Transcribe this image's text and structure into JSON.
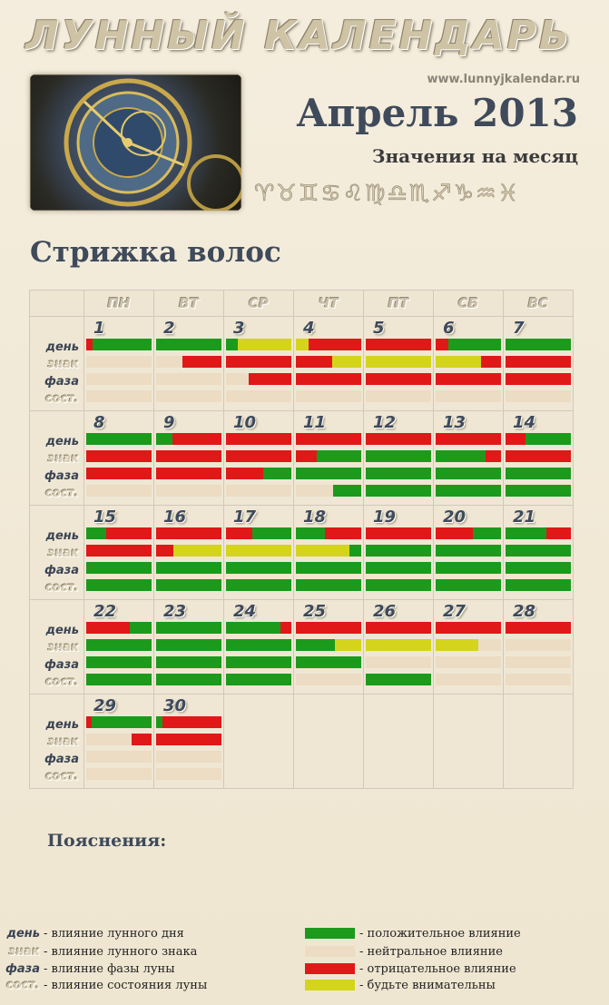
{
  "header": {
    "logo_text": "ЛУННЫЙ КАЛЕНДАРЬ",
    "site": "www.lunnyjkalendar.ru",
    "month": "Апрель 2013",
    "subtitle": "Значения на месяц",
    "zodiac_symbols": "♈♉♊♋♌♍♎♏♐♑♒♓"
  },
  "page_title": "Стрижка волос",
  "weekdays": [
    "ПН",
    "ВТ",
    "СР",
    "ЧТ",
    "ПТ",
    "СБ",
    "ВС"
  ],
  "row_labels": {
    "day": "день",
    "sign": "знак",
    "phase": "фаза",
    "state": "сост."
  },
  "colors": {
    "g": "#1c9a1c",
    "r": "#e01818",
    "y": "#d4d41c",
    "n": "#ecdcc4"
  },
  "weeks": [
    [
      {
        "num": "1",
        "bars": [
          [
            [
              "r",
              0.1
            ],
            [
              "g",
              0.9
            ]
          ],
          [
            [
              "n",
              1
            ]
          ],
          [
            [
              "n",
              1
            ]
          ],
          [
            [
              "n",
              1
            ]
          ]
        ]
      },
      {
        "num": "2",
        "bars": [
          [
            [
              "g",
              1
            ]
          ],
          [
            [
              "n",
              0.4
            ],
            [
              "r",
              0.6
            ]
          ],
          [
            [
              "n",
              1
            ]
          ],
          [
            [
              "n",
              1
            ]
          ]
        ]
      },
      {
        "num": "3",
        "bars": [
          [
            [
              "g",
              0.18
            ],
            [
              "y",
              0.82
            ]
          ],
          [
            [
              "r",
              1
            ]
          ],
          [
            [
              "n",
              0.35
            ],
            [
              "r",
              0.65
            ]
          ],
          [
            [
              "n",
              1
            ]
          ]
        ]
      },
      {
        "num": "4",
        "bars": [
          [
            [
              "y",
              0.2
            ],
            [
              "r",
              0.8
            ]
          ],
          [
            [
              "r",
              0.55
            ],
            [
              "y",
              0.45
            ]
          ],
          [
            [
              "r",
              1
            ]
          ],
          [
            [
              "n",
              1
            ]
          ]
        ]
      },
      {
        "num": "5",
        "bars": [
          [
            [
              "r",
              1
            ]
          ],
          [
            [
              "y",
              1
            ]
          ],
          [
            [
              "r",
              1
            ]
          ],
          [
            [
              "n",
              1
            ]
          ]
        ]
      },
      {
        "num": "6",
        "bars": [
          [
            [
              "r",
              0.2
            ],
            [
              "g",
              0.8
            ]
          ],
          [
            [
              "y",
              0.7
            ],
            [
              "r",
              0.3
            ]
          ],
          [
            [
              "r",
              1
            ]
          ],
          [
            [
              "n",
              1
            ]
          ]
        ]
      },
      {
        "num": "7",
        "bars": [
          [
            [
              "g",
              1
            ]
          ],
          [
            [
              "r",
              1
            ]
          ],
          [
            [
              "r",
              1
            ]
          ],
          [
            [
              "n",
              1
            ]
          ]
        ]
      }
    ],
    [
      {
        "num": "8",
        "bars": [
          [
            [
              "g",
              1
            ]
          ],
          [
            [
              "r",
              1
            ]
          ],
          [
            [
              "r",
              1
            ]
          ],
          [
            [
              "n",
              1
            ]
          ]
        ]
      },
      {
        "num": "9",
        "bars": [
          [
            [
              "g",
              0.25
            ],
            [
              "r",
              0.75
            ]
          ],
          [
            [
              "r",
              1
            ]
          ],
          [
            [
              "r",
              1
            ]
          ],
          [
            [
              "n",
              1
            ]
          ]
        ]
      },
      {
        "num": "10",
        "bars": [
          [
            [
              "r",
              1
            ]
          ],
          [
            [
              "r",
              1
            ]
          ],
          [
            [
              "r",
              0.57
            ],
            [
              "g",
              0.43
            ]
          ],
          [
            [
              "n",
              1
            ]
          ]
        ]
      },
      {
        "num": "11",
        "bars": [
          [
            [
              "r",
              1
            ]
          ],
          [
            [
              "r",
              0.32
            ],
            [
              "g",
              0.68
            ]
          ],
          [
            [
              "g",
              1
            ]
          ],
          [
            [
              "n",
              0.57
            ],
            [
              "g",
              0.43
            ]
          ]
        ]
      },
      {
        "num": "12",
        "bars": [
          [
            [
              "r",
              1
            ]
          ],
          [
            [
              "g",
              1
            ]
          ],
          [
            [
              "g",
              1
            ]
          ],
          [
            [
              "g",
              1
            ]
          ]
        ]
      },
      {
        "num": "13",
        "bars": [
          [
            [
              "r",
              1
            ]
          ],
          [
            [
              "g",
              0.77
            ],
            [
              "r",
              0.23
            ]
          ],
          [
            [
              "g",
              1
            ]
          ],
          [
            [
              "g",
              1
            ]
          ]
        ]
      },
      {
        "num": "14",
        "bars": [
          [
            [
              "r",
              0.3
            ],
            [
              "g",
              0.7
            ]
          ],
          [
            [
              "r",
              1
            ]
          ],
          [
            [
              "g",
              1
            ]
          ],
          [
            [
              "g",
              1
            ]
          ]
        ]
      }
    ],
    [
      {
        "num": "15",
        "bars": [
          [
            [
              "g",
              0.3
            ],
            [
              "r",
              0.7
            ]
          ],
          [
            [
              "r",
              1
            ]
          ],
          [
            [
              "g",
              1
            ]
          ],
          [
            [
              "g",
              1
            ]
          ]
        ]
      },
      {
        "num": "16",
        "bars": [
          [
            [
              "r",
              1
            ]
          ],
          [
            [
              "r",
              0.27
            ],
            [
              "y",
              0.73
            ]
          ],
          [
            [
              "g",
              1
            ]
          ],
          [
            [
              "g",
              1
            ]
          ]
        ]
      },
      {
        "num": "17",
        "bars": [
          [
            [
              "r",
              0.4
            ],
            [
              "g",
              0.6
            ]
          ],
          [
            [
              "y",
              1
            ]
          ],
          [
            [
              "g",
              1
            ]
          ],
          [
            [
              "g",
              1
            ]
          ]
        ]
      },
      {
        "num": "18",
        "bars": [
          [
            [
              "g",
              0.45
            ],
            [
              "r",
              0.55
            ]
          ],
          [
            [
              "y",
              0.82
            ],
            [
              "g",
              0.18
            ]
          ],
          [
            [
              "g",
              1
            ]
          ],
          [
            [
              "g",
              1
            ]
          ]
        ]
      },
      {
        "num": "19",
        "bars": [
          [
            [
              "r",
              1
            ]
          ],
          [
            [
              "g",
              1
            ]
          ],
          [
            [
              "g",
              1
            ]
          ],
          [
            [
              "g",
              1
            ]
          ]
        ]
      },
      {
        "num": "20",
        "bars": [
          [
            [
              "r",
              0.57
            ],
            [
              "g",
              0.43
            ]
          ],
          [
            [
              "g",
              1
            ]
          ],
          [
            [
              "g",
              1
            ]
          ],
          [
            [
              "g",
              1
            ]
          ]
        ]
      },
      {
        "num": "21",
        "bars": [
          [
            [
              "g",
              0.63
            ],
            [
              "r",
              0.37
            ]
          ],
          [
            [
              "g",
              1
            ]
          ],
          [
            [
              "g",
              1
            ]
          ],
          [
            [
              "g",
              1
            ]
          ]
        ]
      }
    ],
    [
      {
        "num": "22",
        "bars": [
          [
            [
              "r",
              0.67
            ],
            [
              "g",
              0.33
            ]
          ],
          [
            [
              "g",
              1
            ]
          ],
          [
            [
              "g",
              1
            ]
          ],
          [
            [
              "g",
              1
            ]
          ]
        ]
      },
      {
        "num": "23",
        "bars": [
          [
            [
              "g",
              1
            ]
          ],
          [
            [
              "g",
              1
            ]
          ],
          [
            [
              "g",
              1
            ]
          ],
          [
            [
              "g",
              1
            ]
          ]
        ]
      },
      {
        "num": "24",
        "bars": [
          [
            [
              "g",
              0.83
            ],
            [
              "r",
              0.17
            ]
          ],
          [
            [
              "g",
              1
            ]
          ],
          [
            [
              "g",
              1
            ]
          ],
          [
            [
              "g",
              1
            ]
          ]
        ]
      },
      {
        "num": "25",
        "bars": [
          [
            [
              "r",
              1
            ]
          ],
          [
            [
              "g",
              0.6
            ],
            [
              "y",
              0.4
            ]
          ],
          [
            [
              "g",
              1
            ]
          ],
          [
            [
              "n",
              1
            ]
          ]
        ]
      },
      {
        "num": "26",
        "bars": [
          [
            [
              "r",
              1
            ]
          ],
          [
            [
              "y",
              1
            ]
          ],
          [
            [
              "n",
              1
            ]
          ],
          [
            [
              "g",
              1
            ]
          ]
        ]
      },
      {
        "num": "27",
        "bars": [
          [
            [
              "r",
              1
            ]
          ],
          [
            [
              "y",
              0.65
            ],
            [
              "n",
              0.35
            ]
          ],
          [
            [
              "n",
              1
            ]
          ],
          [
            [
              "n",
              1
            ]
          ]
        ]
      },
      {
        "num": "28",
        "bars": [
          [
            [
              "r",
              1
            ]
          ],
          [
            [
              "n",
              1
            ]
          ],
          [
            [
              "n",
              1
            ]
          ],
          [
            [
              "n",
              1
            ]
          ]
        ]
      }
    ],
    [
      {
        "num": "29",
        "bars": [
          [
            [
              "r",
              0.08
            ],
            [
              "g",
              0.92
            ]
          ],
          [
            [
              "n",
              0.7
            ],
            [
              "r",
              0.3
            ]
          ],
          [
            [
              "n",
              1
            ]
          ],
          [
            [
              "n",
              1
            ]
          ]
        ]
      },
      {
        "num": "30",
        "bars": [
          [
            [
              "g",
              0.1
            ],
            [
              "r",
              0.9
            ]
          ],
          [
            [
              "r",
              1
            ]
          ],
          [
            [
              "n",
              1
            ]
          ],
          [
            [
              "n",
              1
            ]
          ]
        ]
      },
      null,
      null,
      null,
      null,
      null
    ]
  ],
  "legend": {
    "title": "Пояснения:",
    "left": [
      {
        "key": "день",
        "text": "- влияние лунного дня"
      },
      {
        "key": "знак",
        "text": "- влияние лунного знака"
      },
      {
        "key": "фаза",
        "text": "- влияние фазы луны"
      },
      {
        "key": "сост.",
        "text": "- влияние состояния луны"
      }
    ],
    "right": [
      {
        "color": "#1c9a1c",
        "text": "- положительное влияние"
      },
      {
        "color": "#ecdcc4",
        "text": "- нейтральное влияние"
      },
      {
        "color": "#e01818",
        "text": "- отрицательное влияние"
      },
      {
        "color": "#d4d41c",
        "text": "- будьте внимательны"
      }
    ]
  }
}
